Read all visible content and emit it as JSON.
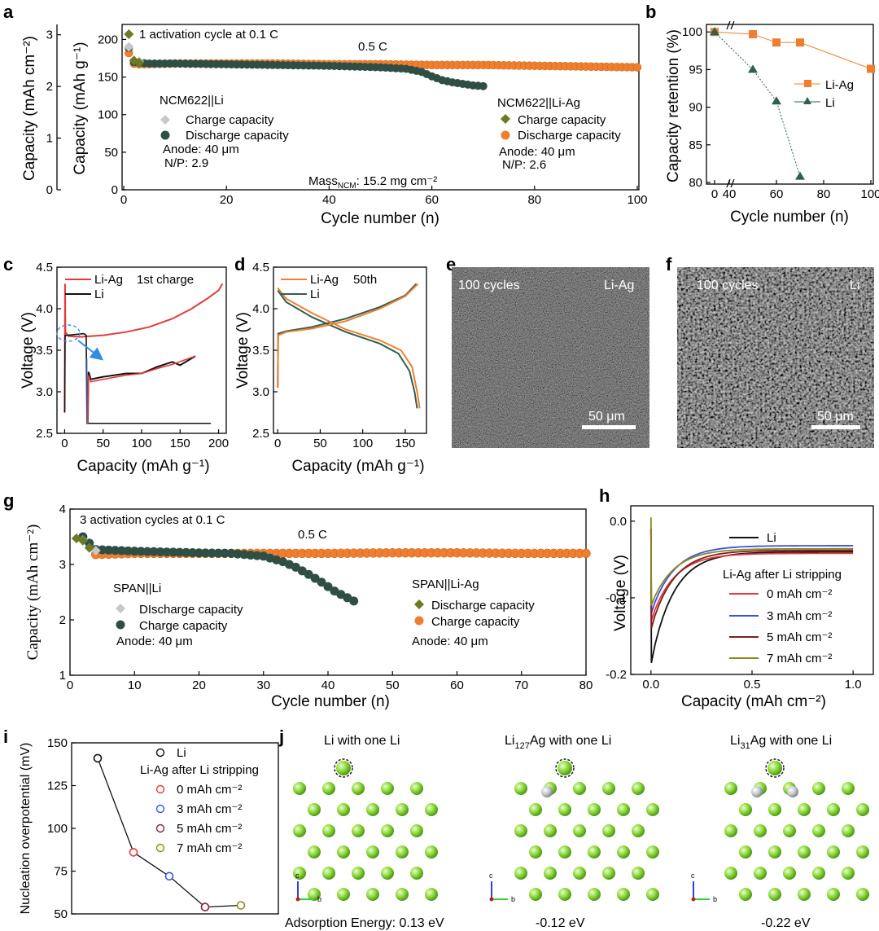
{
  "chart_data": [
    {
      "id": "a",
      "type": "scatter",
      "xlabel": "Cycle number (n)",
      "ylabel": "Capacity (mAh g⁻¹)",
      "ylabel_left": "Capacity (mAh cm⁻²)",
      "xlim": [
        0,
        100
      ],
      "ylim": [
        0,
        220
      ],
      "ylim_left": [
        0,
        3.2
      ],
      "x_ticks": [
        "0",
        "20",
        "40",
        "60",
        "80",
        "100"
      ],
      "y_ticks": [
        "0",
        "50",
        "100",
        "150",
        "200"
      ],
      "y_ticks_left": [
        "0",
        "1",
        "2",
        "3"
      ],
      "annotations": {
        "activation": "1 activation cycle at 0.1 C",
        "rate": "0.5 C",
        "mass_main": "Mass",
        "mass_sub": "NCM",
        "mass_rest": ": 15.2 mg cm⁻²"
      },
      "legend_left": {
        "title": "NCM622||Li",
        "charge": "Charge capacity",
        "discharge": "Discharge capacity",
        "anode": "Anode: 40 μm",
        "np": "N/P: 2.9"
      },
      "legend_right": {
        "title": "NCM622||Li-Ag",
        "charge": "Charge capacity",
        "discharge": "Discharge capacity",
        "anode": "Anode: 40 μm",
        "np": "N/P: 2.6"
      },
      "series": [
        {
          "name": "Li charge",
          "color": "#c8c8c8",
          "x": [
            1,
            2,
            3,
            5,
            10,
            20,
            30,
            40,
            50,
            55,
            58,
            60,
            62,
            64,
            66,
            68,
            70
          ],
          "y": [
            190,
            172,
            171,
            170,
            170,
            169,
            168,
            167,
            165,
            163,
            159,
            153,
            148,
            145,
            143,
            141,
            140
          ]
        },
        {
          "name": "Li discharge",
          "color": "#2f4f45",
          "x": [
            1,
            2,
            3,
            5,
            10,
            20,
            30,
            40,
            50,
            55,
            58,
            60,
            62,
            64,
            66,
            68,
            70
          ],
          "y": [
            190,
            171,
            170,
            169,
            169,
            168,
            167,
            166,
            164,
            162,
            158,
            152,
            147,
            144,
            142,
            140,
            139
          ]
        },
        {
          "name": "Li-Ag charge",
          "color": "#6b7a23",
          "x": [
            1,
            2,
            3
          ],
          "y": [
            207,
            172,
            169
          ]
        },
        {
          "name": "Li-Ag discharge",
          "color": "#ef7f2e",
          "x": [
            1,
            2,
            3,
            10,
            20,
            30,
            40,
            50,
            60,
            70,
            80,
            90,
            100
          ],
          "y": [
            182,
            168,
            167,
            168,
            168,
            168,
            167,
            167,
            166,
            166,
            165,
            164,
            163
          ]
        }
      ]
    },
    {
      "id": "b",
      "type": "line",
      "xlabel": "Cycle number (n)",
      "ylabel": "Capacity retention (%)",
      "x_ticks": [
        "0",
        "40",
        "60",
        "80",
        "100"
      ],
      "y_ticks": [
        "80",
        "85",
        "90",
        "95",
        "100"
      ],
      "ylim": [
        80,
        101
      ],
      "series": [
        {
          "name": "Li-Ag",
          "color": "#ef7f2e",
          "x": [
            0,
            50,
            60,
            70,
            100
          ],
          "y": [
            100,
            99.7,
            98.6,
            98.6,
            95.1
          ]
        },
        {
          "name": "Li",
          "color": "#2f5f4f",
          "x": [
            0,
            50,
            60,
            70
          ],
          "y": [
            100,
            95,
            90.8,
            80.8
          ]
        }
      ]
    },
    {
      "id": "c",
      "type": "line",
      "xlabel": "Capacity (mAh g⁻¹)",
      "ylabel": "Voltage (V)",
      "xlim": [
        -10,
        210
      ],
      "ylim": [
        2.5,
        4.5
      ],
      "x_ticks": [
        "0",
        "50",
        "100",
        "150",
        "200"
      ],
      "y_ticks": [
        "2.5",
        "3.0",
        "3.5",
        "4.0",
        "4.5"
      ],
      "legend_note": "1st charge",
      "series": [
        {
          "name": "Li-Ag",
          "color": "#e53a3a"
        },
        {
          "name": "Li",
          "color": "#111111"
        }
      ]
    },
    {
      "id": "d",
      "type": "line",
      "xlabel": "Capacity (mAh g⁻¹)",
      "ylabel": "Voltage (V)",
      "xlim": [
        -5,
        175
      ],
      "ylim": [
        2.5,
        4.5
      ],
      "x_ticks": [
        "0",
        "50",
        "100",
        "150"
      ],
      "y_ticks": [
        "2.5",
        "3.0",
        "3.5",
        "4.0",
        "4.5"
      ],
      "legend_note": "50th",
      "series": [
        {
          "name": "Li-Ag",
          "color": "#ef7f2e"
        },
        {
          "name": "Li",
          "color": "#2f5f4f"
        }
      ]
    },
    {
      "id": "g",
      "type": "scatter",
      "xlabel": "Cycle number (n)",
      "ylabel": "Capacity (mAh cm⁻²)",
      "xlim": [
        0,
        80
      ],
      "ylim": [
        1,
        4
      ],
      "x_ticks": [
        "0",
        "10",
        "20",
        "30",
        "40",
        "50",
        "60",
        "70",
        "80"
      ],
      "y_ticks": [
        "1",
        "2",
        "3",
        "4"
      ],
      "annotations": {
        "activation": "3 activation cycles at 0.1 C",
        "rate": "0.5 C"
      },
      "legend_left": {
        "title": "SPAN||Li",
        "discharge": "DIscharge capacity",
        "charge": "Charge capacity",
        "anode": "Anode: 40 μm"
      },
      "legend_right": {
        "title": "SPAN||Li-Ag",
        "discharge": "Discharge capacity",
        "charge": "Charge capacity",
        "anode": "Anode: 40 μm"
      },
      "series": [
        {
          "name": "Li discharge",
          "color": "#c8c8c8",
          "x": [
            1,
            2,
            3,
            4
          ],
          "y": [
            3.47,
            3.44,
            3.3,
            3.25
          ]
        },
        {
          "name": "Li charge",
          "color": "#2f4f45",
          "x": [
            2,
            4,
            10,
            20,
            25,
            30,
            33,
            35,
            37,
            39,
            41,
            43,
            44
          ],
          "y": [
            3.5,
            3.27,
            3.24,
            3.21,
            3.2,
            3.15,
            3.05,
            2.95,
            2.82,
            2.68,
            2.52,
            2.4,
            2.34
          ]
        },
        {
          "name": "Li-Ag discharge",
          "color": "#6b7a23",
          "x": [
            1,
            2,
            3
          ],
          "y": [
            3.47,
            3.43,
            3.3
          ]
        },
        {
          "name": "Li-Ag charge",
          "color": "#ef7f2e",
          "x": [
            4,
            10,
            20,
            30,
            40,
            50,
            60,
            70,
            80
          ],
          "y": [
            3.18,
            3.2,
            3.2,
            3.2,
            3.2,
            3.21,
            3.21,
            3.2,
            3.2
          ]
        }
      ]
    },
    {
      "id": "h",
      "type": "line",
      "xlabel": "Capacity (mAh cm⁻²)",
      "ylabel": "Voltage (V)",
      "xlim": [
        -0.1,
        1.1
      ],
      "ylim": [
        -0.2,
        0.02
      ],
      "x_ticks": [
        "0.0",
        "0.5",
        "1.0"
      ],
      "y_ticks": [
        "0.0",
        "-0.1",
        "-0.2"
      ],
      "legend_title": "Li-Ag after Li stripping",
      "series": [
        {
          "name": "Li",
          "color": "#111111",
          "end": -0.04
        },
        {
          "name": "0 mAh cm⁻²",
          "color": "#e53a3a",
          "end": -0.042
        },
        {
          "name": "3 mAh cm⁻²",
          "color": "#3a53e5",
          "end": -0.032
        },
        {
          "name": "5 mAh cm⁻²",
          "color": "#7a1f1f",
          "end": -0.038
        },
        {
          "name": "7 mAh cm⁻²",
          "color": "#8a8a1a",
          "end": -0.036
        }
      ]
    },
    {
      "id": "i",
      "type": "scatter",
      "ylabel": "Nucleation overpotential (mV)",
      "ylim": [
        50,
        150
      ],
      "y_ticks": [
        "50",
        "75",
        "100",
        "125",
        "150"
      ],
      "legend_title": "Li-Ag after Li stripping",
      "points": [
        {
          "name": "Li",
          "color": "#111111",
          "value": 141
        },
        {
          "name": "0 mAh cm⁻²",
          "color": "#e53a3a",
          "value": 86
        },
        {
          "name": "3 mAh cm⁻²",
          "color": "#3a53e5",
          "value": 72
        },
        {
          "name": "5 mAh cm⁻²",
          "color": "#8a1f3a",
          "value": 54
        },
        {
          "name": "7 mAh cm⁻²",
          "color": "#8a8a1a",
          "value": 55
        }
      ]
    }
  ],
  "panels": {
    "a": "a",
    "b": "b",
    "c": "c",
    "d": "d",
    "e": "e",
    "f": "f",
    "g": "g",
    "h": "h",
    "i": "i",
    "j": "j"
  },
  "sem": {
    "e": {
      "cycles": "100 cycles",
      "sample": "Li-Ag",
      "scale": "50 μm"
    },
    "f": {
      "cycles": "100 cycles",
      "sample": "Li",
      "scale": "50 μm"
    }
  },
  "structures": {
    "s1": {
      "title": "Li with one Li",
      "energy": "Adsorption Energy: 0.13 eV"
    },
    "s2": {
      "title_a": "Li",
      "title_sub": "127",
      "title_b": "Ag with one Li",
      "energy": "-0.12 eV"
    },
    "s3": {
      "title_a": "Li",
      "title_sub": "31",
      "title_b": "Ag with one Li",
      "energy": "-0.22 eV"
    },
    "axes": {
      "c": "c",
      "b": "b"
    }
  },
  "colors": {
    "li": "#2f4f45",
    "liag": "#ef7f2e",
    "olive": "#6b7a23",
    "red": "#e53a3a",
    "black": "#111111",
    "atom": "#8ed83a",
    "ag": "#c0c8cc"
  }
}
